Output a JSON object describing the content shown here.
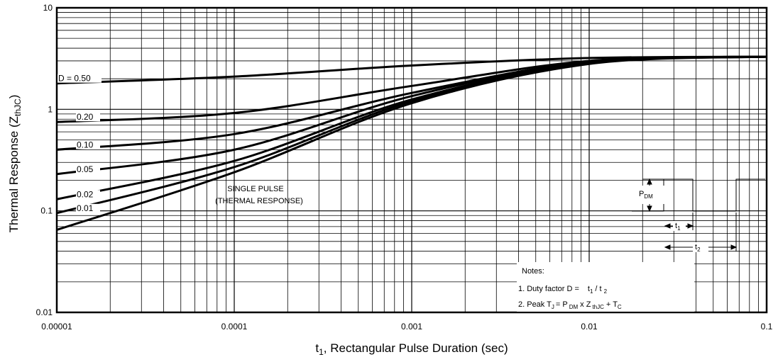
{
  "chart_data": {
    "type": "line",
    "xscale": "log",
    "yscale": "log",
    "xlim": [
      1e-05,
      0.1
    ],
    "ylim": [
      0.01,
      10
    ],
    "grid": true,
    "xlabel_main": "t",
    "xlabel_sub": "1",
    "xlabel_rest": ", Rectangular Pulse Duration (sec)",
    "ylabel_main": "Thermal Response  (Z",
    "ylabel_sub": "thJC",
    "ylabel_end": ")",
    "x_ticks": [
      {
        "value": 1e-05,
        "label": "0.00001"
      },
      {
        "value": 0.0001,
        "label": "0.0001"
      },
      {
        "value": 0.001,
        "label": "0.001"
      },
      {
        "value": 0.01,
        "label": "0.01"
      },
      {
        "value": 0.1,
        "label": "0.1"
      }
    ],
    "y_ticks": [
      {
        "value": 0.01,
        "label": "0.01"
      },
      {
        "value": 0.1,
        "label": "0.1"
      },
      {
        "value": 1,
        "label": "1"
      },
      {
        "value": 10,
        "label": "10"
      }
    ],
    "series": [
      {
        "name": "D = 0.50",
        "x": [
          1e-05,
          0.0001,
          0.001,
          0.01,
          0.1
        ],
        "y": [
          1.8,
          2.1,
          2.7,
          3.2,
          3.3
        ]
      },
      {
        "name": "0.20",
        "x": [
          1e-05,
          0.0001,
          0.001,
          0.01,
          0.1
        ],
        "y": [
          0.75,
          0.92,
          1.7,
          3.0,
          3.3
        ]
      },
      {
        "name": "0.10",
        "x": [
          1e-05,
          0.0001,
          0.001,
          0.01,
          0.1
        ],
        "y": [
          0.4,
          0.57,
          1.45,
          2.95,
          3.3
        ]
      },
      {
        "name": "0.05",
        "x": [
          1e-05,
          0.0001,
          0.001,
          0.01,
          0.1
        ],
        "y": [
          0.23,
          0.4,
          1.35,
          2.9,
          3.3
        ]
      },
      {
        "name": "0.02",
        "x": [
          1e-05,
          0.0001,
          0.001,
          0.01,
          0.1
        ],
        "y": [
          0.13,
          0.31,
          1.25,
          2.85,
          3.3
        ]
      },
      {
        "name": "0.01",
        "x": [
          1e-05,
          0.0001,
          0.001,
          0.01,
          0.1
        ],
        "y": [
          0.095,
          0.27,
          1.2,
          2.85,
          3.3
        ]
      },
      {
        "name": "SINGLE PULSE",
        "x": [
          1e-05,
          0.0001,
          0.001,
          0.01,
          0.1
        ],
        "y": [
          0.065,
          0.24,
          1.15,
          2.8,
          3.3
        ]
      }
    ],
    "curve_labels": [
      "D = 0.50",
      "0.20",
      "0.10",
      "0.05",
      "0.02",
      "0.01"
    ],
    "single_pulse_label_1": "SINGLE PULSE",
    "single_pulse_label_2": "(THERMAL RESPONSE)",
    "notes_title": "Notes:",
    "note1_text": "1. Duty factor D =",
    "note1_formula": "t",
    "note1_t1_sub": "1",
    "note1_slash": "/ t",
    "note1_t2_sub": "2",
    "note2_text": "2. Peak T",
    "note2_j_sub": "J",
    "note2_eq": "= P",
    "note2_dm_sub": "DM",
    "note2_x": "x Z",
    "note2_thjc_sub": "thJC",
    "note2_plus": "+ T",
    "note2_c_sub": "C",
    "pdm_label": "P",
    "pdm_sub": "DM",
    "t1_label": "t",
    "t1_sub": "1",
    "t2_label": "t",
    "t2_sub": "2"
  }
}
